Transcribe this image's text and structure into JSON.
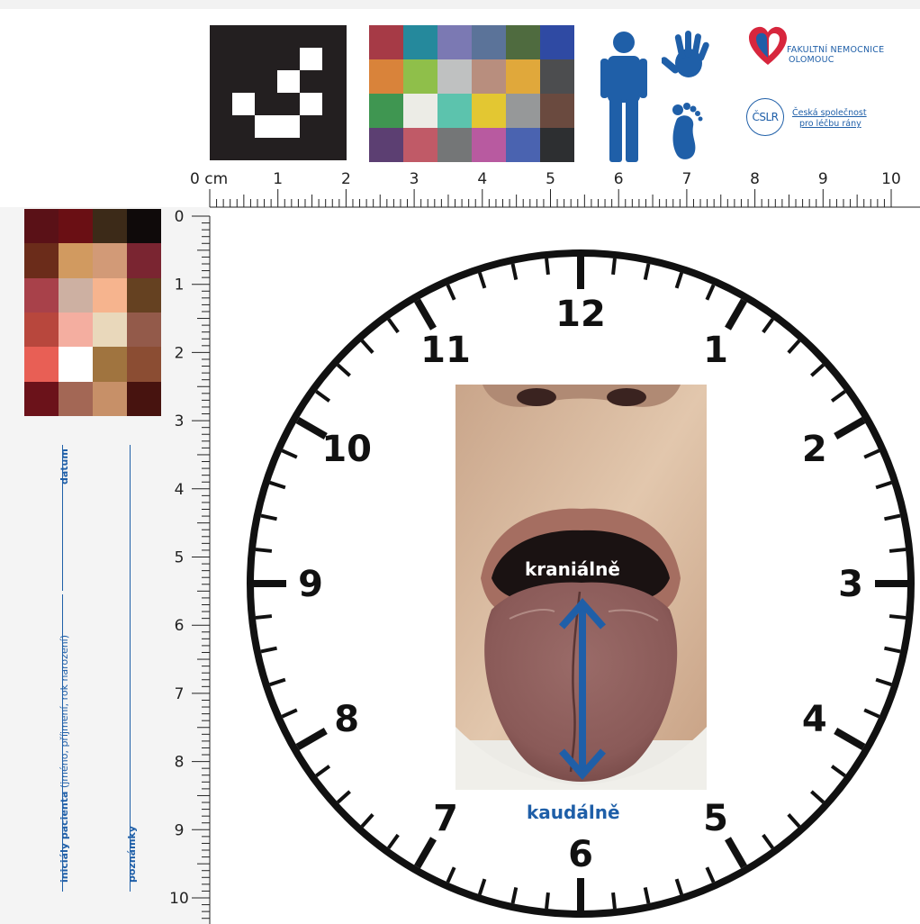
{
  "ruler": {
    "unit": "cm",
    "top_labels": [
      "0 cm",
      "1",
      "2",
      "3",
      "4",
      "5",
      "6",
      "7",
      "8",
      "9",
      "10"
    ],
    "left_labels": [
      "0",
      "1",
      "2",
      "3",
      "4",
      "5",
      "6",
      "7",
      "8",
      "9",
      "10"
    ]
  },
  "color_chart": [
    "#a63a46",
    "#25899c",
    "#7b79b3",
    "#5b7399",
    "#4f6b3f",
    "#2f4aa3",
    "#d9833a",
    "#8fbf4a",
    "#bfc1c1",
    "#b88e7e",
    "#e0a83b",
    "#4c4d4f",
    "#3f9651",
    "#ecece6",
    "#5cc3ad",
    "#e3c732",
    "#969899",
    "#6a4a3f",
    "#5c3f72",
    "#c05a67",
    "#747677",
    "#b85aa0",
    "#4a63b0",
    "#2d2f31"
  ],
  "skin_chart": [
    "#5a1117",
    "#6a0f14",
    "#3c2a18",
    "#0f0a0a",
    "#6b2c1a",
    "#d19a60",
    "#d29a77",
    "#7a2531",
    "#a8414a",
    "#cdb0a2",
    "#f6b48e",
    "#654121",
    "#b8473d",
    "#f4aea0",
    "#e9d8bb",
    "#935a4a",
    "#e85f55",
    "#ffffff",
    "#a0743f",
    "#8b4d33",
    "#6b121a",
    "#a36755",
    "#c79068",
    "#47130f"
  ],
  "icons": [
    "person-icon",
    "hand-icon",
    "foot-icon"
  ],
  "brand": {
    "hospital_line1": "FAKULTNÍ NEMOCNICE",
    "hospital_line2": "OLOMOUC",
    "society_abbr": "ČSLR",
    "society_line1": "Česká společnost",
    "society_line2": "pro léčbu rány",
    "accent": "#1f5fa8"
  },
  "form": {
    "datum": "datum",
    "patient_bold": "iniciály pacienta",
    "patient_rest": " (jméno, příjmení, rok narození)",
    "notes": "poznámky"
  },
  "clock": {
    "numbers": [
      "12",
      "1",
      "2",
      "3",
      "4",
      "5",
      "6",
      "7",
      "8",
      "9",
      "10",
      "11"
    ]
  },
  "photo": {
    "top_label": "kraniálně",
    "bottom_label": "kaudálně"
  }
}
